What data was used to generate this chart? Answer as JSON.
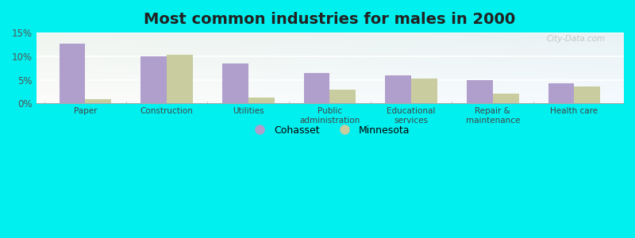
{
  "title": "Most common industries for males in 2000",
  "categories": [
    "Paper",
    "Construction",
    "Utilities",
    "Public\nadministration",
    "Educational\nservices",
    "Repair &\nmaintenance",
    "Health care"
  ],
  "cohasset": [
    12.7,
    10.0,
    8.4,
    6.4,
    5.9,
    5.0,
    4.2
  ],
  "minnesota": [
    0.9,
    10.3,
    1.2,
    2.9,
    5.2,
    2.1,
    3.5
  ],
  "cohasset_color": "#b09fcc",
  "minnesota_color": "#c8cc9f",
  "background_outer": "#00efef",
  "ylim": [
    0,
    15
  ],
  "yticks": [
    0,
    5,
    10,
    15
  ],
  "ytick_labels": [
    "0%",
    "5%",
    "10%",
    "15%"
  ],
  "legend_cohasset": "Cohasset",
  "legend_minnesota": "Minnesota",
  "title_fontsize": 14,
  "bar_width": 0.32
}
